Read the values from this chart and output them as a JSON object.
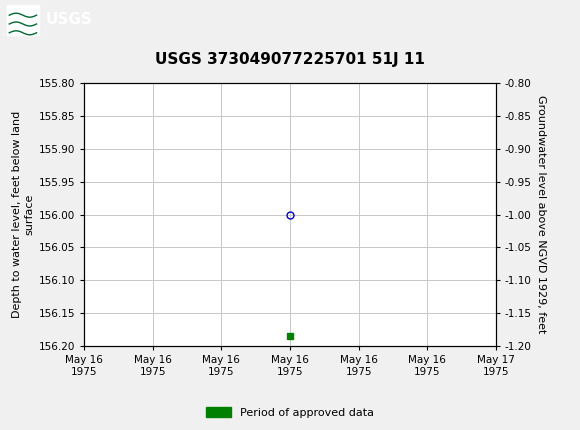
{
  "title": "USGS 373049077225701 51J 11",
  "header_color": "#006633",
  "bg_color": "#f0f0f0",
  "plot_bg_color": "#ffffff",
  "grid_color": "#c8c8c8",
  "ylabel_left": "Depth to water level, feet below land\nsurface",
  "ylabel_right": "Groundwater level above NGVD 1929, feet",
  "ylim_left": [
    155.8,
    156.2
  ],
  "ylim_right": [
    -0.8,
    -1.2
  ],
  "yticks_left": [
    155.8,
    155.85,
    155.9,
    155.95,
    156.0,
    156.05,
    156.1,
    156.15,
    156.2
  ],
  "yticks_right": [
    -0.8,
    -0.85,
    -0.9,
    -0.95,
    -1.0,
    -1.05,
    -1.1,
    -1.15,
    -1.2
  ],
  "xtick_labels": [
    "May 16\n1975",
    "May 16\n1975",
    "May 16\n1975",
    "May 16\n1975",
    "May 16\n1975",
    "May 16\n1975",
    "May 17\n1975"
  ],
  "data_point_x": 3.0,
  "data_point_y": 156.0,
  "data_point_color": "#0000cc",
  "green_marker_x": 3.0,
  "green_marker_y": 156.185,
  "green_color": "#008000",
  "legend_label": "Period of approved data",
  "title_fontsize": 11,
  "tick_fontsize": 7.5,
  "label_fontsize": 8,
  "xmin": 0,
  "xmax": 6
}
